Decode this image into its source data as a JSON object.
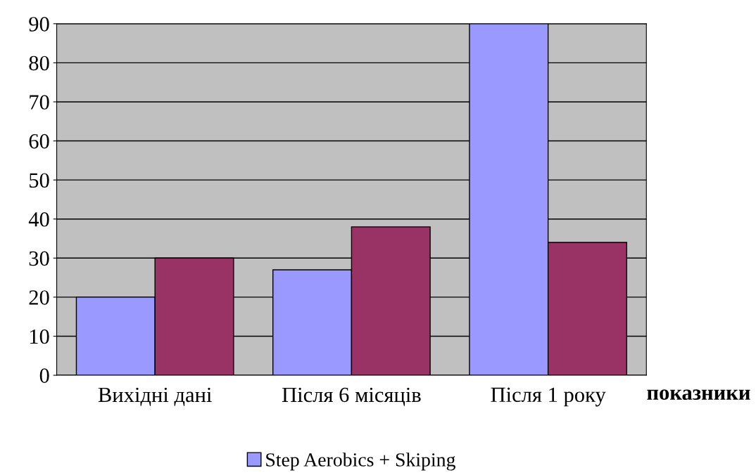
{
  "chart_data": {
    "type": "bar",
    "xlabel": "показники",
    "categories": [
      "Вихідні дані",
      "Після 6 місяців",
      "Після 1 року"
    ],
    "series": [
      {
        "name": "Step Aerobics + Skiping",
        "color": "#9999ff",
        "values": [
          20,
          27,
          90
        ]
      },
      {
        "color": "#993366",
        "values": [
          30,
          38,
          34
        ]
      }
    ],
    "ylim": [
      0,
      90
    ],
    "yticks": [
      0,
      10,
      20,
      30,
      40,
      50,
      60,
      70,
      80,
      90
    ],
    "grid": "y",
    "legend": "bottom"
  }
}
